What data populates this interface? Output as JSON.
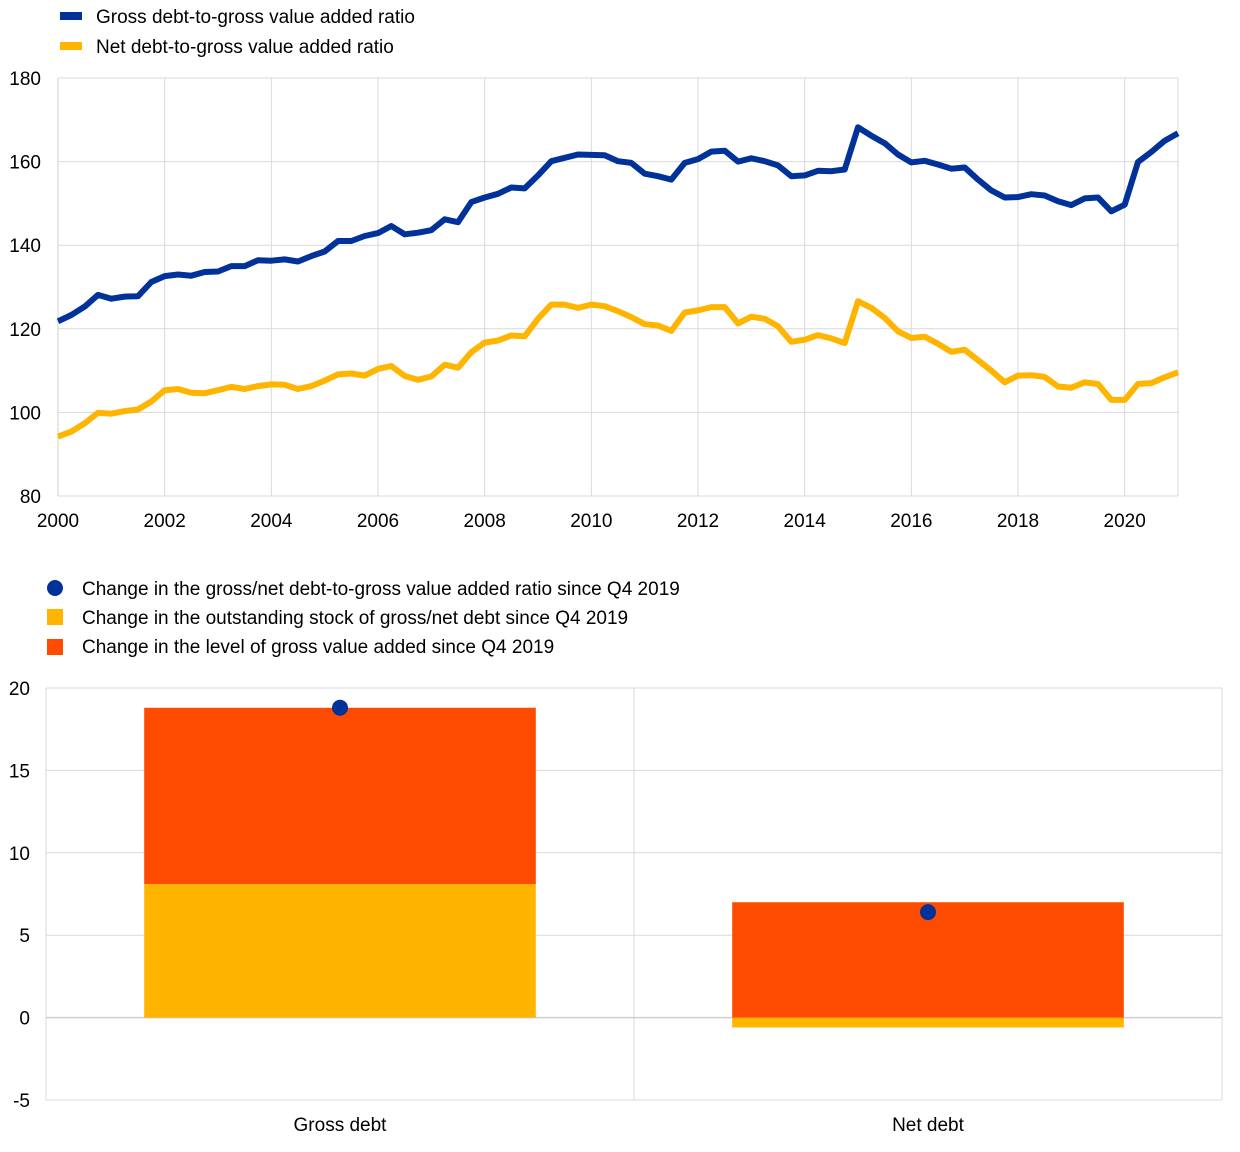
{
  "colors": {
    "gross": "#003299",
    "net": "#FFB400",
    "stock": "#FFB400",
    "gva": "#FF4B00",
    "grid": "#d9d9d9",
    "axis": "#cfcfcf"
  },
  "chart_data": [
    {
      "type": "line",
      "title": "",
      "xlabel": "",
      "ylabel": "",
      "xlim": [
        2000,
        2021
      ],
      "ylim": [
        80,
        180
      ],
      "x_ticks": [
        "2000",
        "2002",
        "2004",
        "2006",
        "2008",
        "2010",
        "2012",
        "2014",
        "2016",
        "2018",
        "2020"
      ],
      "y_ticks": [
        "80",
        "100",
        "120",
        "140",
        "160",
        "180"
      ],
      "grid": "vertical and horizontal",
      "legend": "top-left",
      "legend_entries": [
        "Gross debt-to-gross value added ratio",
        "Net debt-to-gross value added ratio"
      ],
      "x": [
        2000.0,
        2000.25,
        2000.5,
        2000.75,
        2001.0,
        2001.25,
        2001.5,
        2001.75,
        2002.0,
        2002.25,
        2002.5,
        2002.75,
        2003.0,
        2003.25,
        2003.5,
        2003.75,
        2004.0,
        2004.25,
        2004.5,
        2004.75,
        2005.0,
        2005.25,
        2005.5,
        2005.75,
        2006.0,
        2006.25,
        2006.5,
        2006.75,
        2007.0,
        2007.25,
        2007.5,
        2007.75,
        2008.0,
        2008.25,
        2008.5,
        2008.75,
        2009.0,
        2009.25,
        2009.5,
        2009.75,
        2010.0,
        2010.25,
        2010.5,
        2010.75,
        2011.0,
        2011.25,
        2011.5,
        2011.75,
        2012.0,
        2012.25,
        2012.5,
        2012.75,
        2013.0,
        2013.25,
        2013.5,
        2013.75,
        2014.0,
        2014.25,
        2014.5,
        2014.75,
        2015.0,
        2015.25,
        2015.5,
        2015.75,
        2016.0,
        2016.25,
        2016.5,
        2016.75,
        2017.0,
        2017.25,
        2017.5,
        2017.75,
        2018.0,
        2018.25,
        2018.5,
        2018.75,
        2019.0,
        2019.25,
        2019.5,
        2019.75,
        2020.0,
        2020.25,
        2020.5,
        2020.75,
        2021.0
      ],
      "series": [
        {
          "name": "Gross debt-to-gross value added ratio",
          "values": [
            121.8,
            123.3,
            125.3,
            128.1,
            127.2,
            127.7,
            127.8,
            131.2,
            132.6,
            133.0,
            132.7,
            133.6,
            133.7,
            135.0,
            135.0,
            136.4,
            136.3,
            136.6,
            136.1,
            137.4,
            138.5,
            141.0,
            141.0,
            142.2,
            142.9,
            144.6,
            142.6,
            143.0,
            143.6,
            146.2,
            145.5,
            150.3,
            151.4,
            152.3,
            153.8,
            153.6,
            156.7,
            160.1,
            160.9,
            161.7,
            161.6,
            161.5,
            160.1,
            159.7,
            157.1,
            156.5,
            155.7,
            159.7,
            160.6,
            162.4,
            162.6,
            160.0,
            160.8,
            160.1,
            159.1,
            156.5,
            156.7,
            157.8,
            157.7,
            158.1,
            168.2,
            166.2,
            164.4,
            161.7,
            159.8,
            160.2,
            159.3,
            158.3,
            158.6,
            155.7,
            153.1,
            151.4,
            151.5,
            152.2,
            151.9,
            150.5,
            149.6,
            151.2,
            151.4,
            148.1,
            149.7,
            159.9,
            162.3,
            165.0,
            166.8
          ]
        },
        {
          "name": "Net debt-to-gross value added ratio",
          "values": [
            94.2,
            95.4,
            97.4,
            99.9,
            99.7,
            100.3,
            100.7,
            102.6,
            105.3,
            105.6,
            104.7,
            104.6,
            105.3,
            106.1,
            105.6,
            106.3,
            106.7,
            106.6,
            105.6,
            106.3,
            107.6,
            109.1,
            109.3,
            108.8,
            110.4,
            111.1,
            108.7,
            107.8,
            108.6,
            111.4,
            110.7,
            114.4,
            116.7,
            117.2,
            118.4,
            118.2,
            122.4,
            125.8,
            125.8,
            125.0,
            125.8,
            125.4,
            124.2,
            122.8,
            121.1,
            120.8,
            119.5,
            123.9,
            124.4,
            125.2,
            125.2,
            121.3,
            122.9,
            122.4,
            120.6,
            116.9,
            117.4,
            118.5,
            117.7,
            116.6,
            126.6,
            125.0,
            122.6,
            119.4,
            117.8,
            118.1,
            116.4,
            114.5,
            115.0,
            112.5,
            110.0,
            107.2,
            108.8,
            108.9,
            108.5,
            106.2,
            105.9,
            107.2,
            106.8,
            103.0,
            103.0,
            106.8,
            107.0,
            108.4,
            109.6
          ]
        }
      ]
    },
    {
      "type": "bar",
      "stacked": true,
      "title": "",
      "xlabel": "",
      "ylabel": "",
      "ylim": [
        -5,
        20
      ],
      "y_ticks": [
        "-5",
        "0",
        "5",
        "10",
        "15",
        "20"
      ],
      "grid": "horizontal",
      "legend": "top-left",
      "categories": [
        "Gross debt",
        "Net debt"
      ],
      "series": [
        {
          "name": "Change in the outstanding stock of gross/net debt since Q4 2019",
          "kind": "bar",
          "values": [
            8.1,
            -0.6
          ]
        },
        {
          "name": "Change in the level of gross value added since Q4 2019",
          "kind": "bar",
          "values": [
            10.7,
            7.0
          ]
        },
        {
          "name": "Change in the gross/net debt-to-gross value added ratio since Q4 2019",
          "kind": "dot",
          "values": [
            18.8,
            6.4
          ]
        }
      ]
    }
  ]
}
